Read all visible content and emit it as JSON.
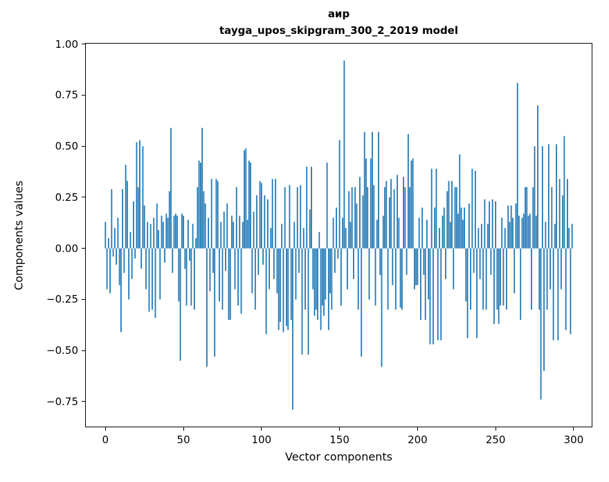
{
  "figure": {
    "background": "#ffffff"
  },
  "chart_data": {
    "type": "bar",
    "title": "аир",
    "subtitle": "tayga_upos_skipgram_300_2_2019 model",
    "xlabel": "Vector components",
    "ylabel": "Components values",
    "bar_color": "#1f77b4",
    "grid": false,
    "legend": false,
    "x_start": 0,
    "n_components": 300,
    "xlim": [
      -13,
      312
    ],
    "ylim": [
      -0.876,
      1.006
    ],
    "xticks": [
      {
        "v": 0,
        "label": "0"
      },
      {
        "v": 50,
        "label": "50"
      },
      {
        "v": 100,
        "label": "100"
      },
      {
        "v": 150,
        "label": "150"
      },
      {
        "v": 200,
        "label": "200"
      },
      {
        "v": 250,
        "label": "250"
      },
      {
        "v": 300,
        "label": "300"
      }
    ],
    "yticks": [
      {
        "v": 1.0,
        "label": "1.00"
      },
      {
        "v": 0.75,
        "label": "0.75"
      },
      {
        "v": 0.5,
        "label": "0.50"
      },
      {
        "v": 0.25,
        "label": "0.25"
      },
      {
        "v": 0.0,
        "label": "0.00"
      },
      {
        "v": -0.25,
        "label": "−0.25"
      },
      {
        "v": -0.5,
        "label": "−0.50"
      },
      {
        "v": -0.75,
        "label": "−0.75"
      }
    ],
    "values": [
      0.13,
      -0.2,
      0.05,
      -0.22,
      0.29,
      -0.04,
      0.1,
      -0.08,
      0.15,
      -0.18,
      -0.41,
      0.29,
      -0.12,
      0.41,
      0.33,
      -0.25,
      0.08,
      -0.15,
      0.23,
      -0.05,
      0.52,
      0.3,
      0.53,
      -0.1,
      0.5,
      0.21,
      -0.2,
      0.13,
      -0.31,
      0.12,
      -0.3,
      0.15,
      -0.34,
      0.22,
      0.09,
      -0.25,
      0.16,
      0.13,
      -0.07,
      0.17,
      0.15,
      0.28,
      0.59,
      -0.12,
      0.16,
      0.17,
      0.16,
      -0.26,
      -0.55,
      0.17,
      0.16,
      -0.1,
      -0.28,
      0.14,
      -0.06,
      -0.28,
      0.12,
      -0.3,
      0.05,
      0.3,
      0.43,
      0.42,
      0.59,
      0.28,
      0.22,
      -0.58,
      0.15,
      -0.21,
      0.34,
      -0.12,
      -0.53,
      0.34,
      0.33,
      -0.26,
      0.13,
      -0.3,
      0.18,
      -0.11,
      0.22,
      -0.35,
      -0.35,
      0.16,
      0.13,
      -0.2,
      0.3,
      -0.28,
      0.16,
      -0.32,
      0.13,
      0.48,
      0.49,
      0.14,
      0.43,
      0.42,
      -0.22,
      0.18,
      -0.3,
      0.26,
      -0.13,
      0.33,
      0.32,
      -0.08,
      0.26,
      -0.42,
      0.24,
      -0.2,
      0.1,
      0.34,
      -0.15,
      0.34,
      -0.22,
      -0.4,
      -0.36,
      0.12,
      -0.41,
      0.3,
      -0.38,
      -0.4,
      0.31,
      -0.35,
      -0.79,
      0.13,
      -0.25,
      0.3,
      -0.12,
      0.31,
      -0.52,
      0.1,
      -0.3,
      0.4,
      -0.52,
      0.19,
      0.4,
      -0.2,
      -0.33,
      -0.3,
      -0.35,
      0.08,
      -0.4,
      -0.28,
      -0.33,
      -0.25,
      0.42,
      -0.4,
      -0.22,
      -0.3,
      0.15,
      -0.12,
      0.2,
      -0.05,
      0.53,
      -0.28,
      0.15,
      0.92,
      0.1,
      -0.2,
      0.28,
      0.13,
      0.3,
      -0.15,
      0.3,
      0.22,
      -0.3,
      0.35,
      -0.53,
      0.26,
      0.57,
      0.44,
      0.3,
      -0.25,
      0.44,
      0.57,
      0.31,
      -0.28,
      0.14,
      0.57,
      -0.13,
      -0.58,
      0.16,
      0.3,
      0.33,
      -0.3,
      0.25,
      0.34,
      -0.18,
      0.29,
      -0.3,
      0.36,
      0.15,
      -0.29,
      -0.3,
      0.35,
      0.3,
      -0.13,
      0.56,
      0.3,
      0.43,
      0.44,
      -0.2,
      -0.18,
      -0.18,
      0.15,
      -0.35,
      0.2,
      -0.13,
      -0.35,
      0.14,
      -0.25,
      -0.47,
      0.39,
      -0.47,
      0.2,
      0.39,
      -0.45,
      0.1,
      -0.45,
      0.16,
      0.2,
      -0.15,
      0.28,
      0.33,
      0.13,
      0.33,
      -0.2,
      0.3,
      0.3,
      0.17,
      0.46,
      0.2,
      0.14,
      0.2,
      -0.26,
      -0.44,
      0.22,
      -0.3,
      0.39,
      -0.12,
      0.38,
      -0.44,
      0.1,
      -0.15,
      0.12,
      -0.3,
      0.24,
      -0.3,
      0.12,
      0.23,
      -0.13,
      0.24,
      -0.37,
      0.23,
      -0.3,
      -0.37,
      -0.28,
      0.15,
      -0.28,
      0.1,
      -0.3,
      0.21,
      0.13,
      0.21,
      0.15,
      -0.22,
      0.22,
      0.81,
      0.16,
      -0.35,
      0.15,
      0.17,
      0.3,
      0.3,
      0.16,
      0.17,
      -0.3,
      0.3,
      0.5,
      0.16,
      0.7,
      -0.3,
      -0.74,
      0.5,
      -0.6,
      0.13,
      -0.3,
      0.51,
      -0.2,
      0.3,
      -0.45,
      0.12,
      0.51,
      -0.45,
      0.34,
      -0.2,
      0.26,
      0.55,
      -0.4,
      0.34,
      0.1,
      -0.42,
      0.12
    ]
  }
}
